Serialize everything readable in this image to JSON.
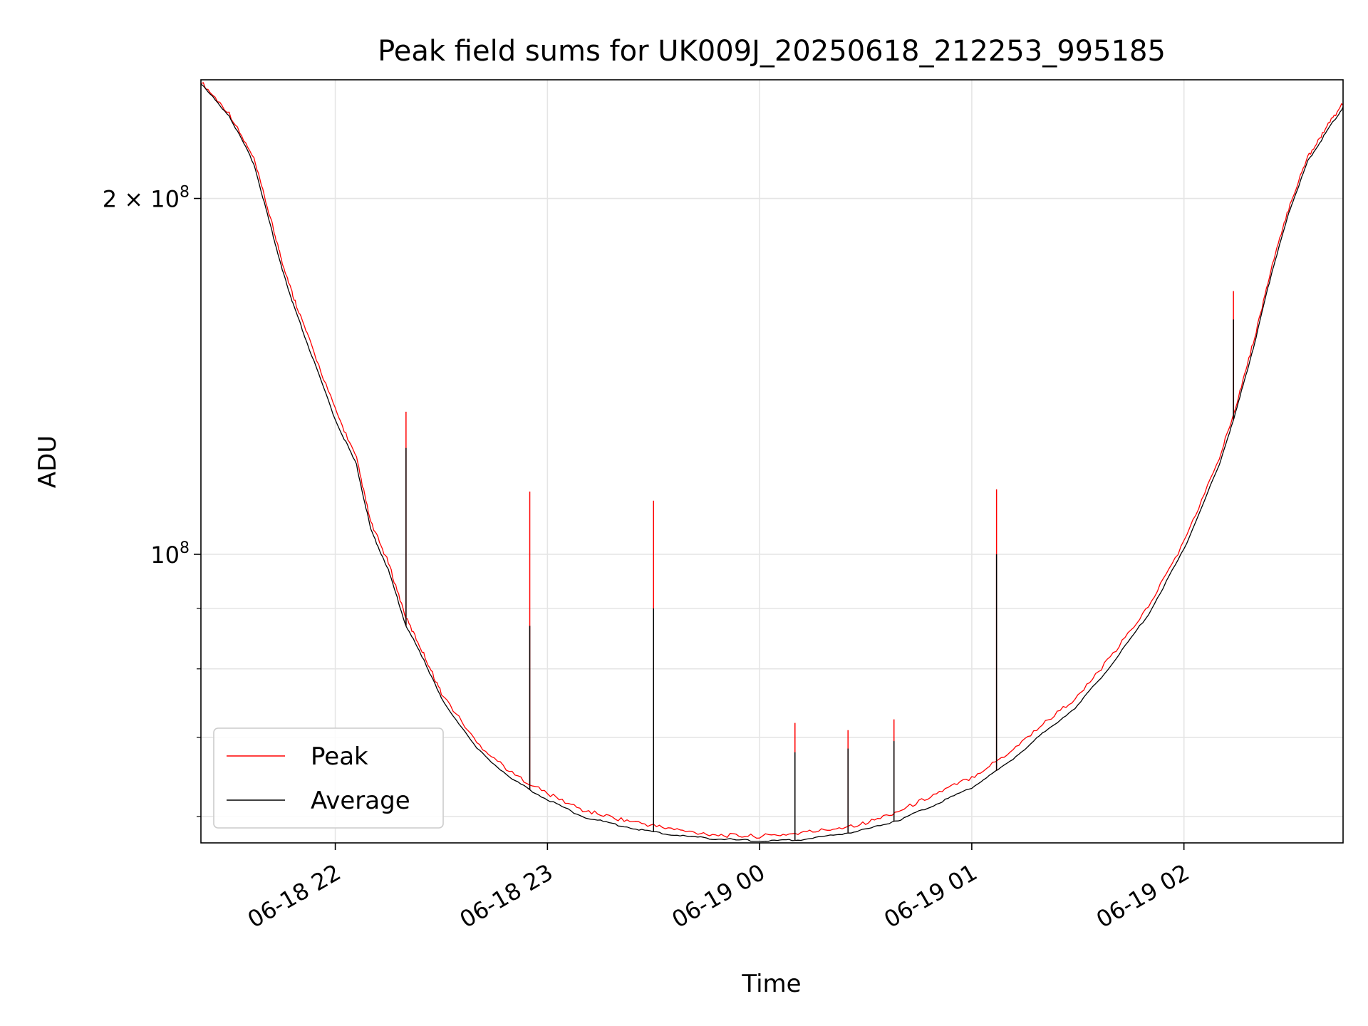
{
  "chart_data": {
    "type": "line",
    "title": "Peak field sums for UK009J_20250618_212253_995185",
    "xlabel": "Time",
    "ylabel": "ADU",
    "yscale": "log",
    "grid": true,
    "legend_position": "lower-left",
    "xlim": [
      "2025-06-18 21:22",
      "2025-06-19 02:45"
    ],
    "ylim": [
      57000000,
      252000000
    ],
    "x_ticks": [
      {
        "value": "2025-06-18 22:00",
        "label": "06-18 22"
      },
      {
        "value": "2025-06-18 23:00",
        "label": "06-18 23"
      },
      {
        "value": "2025-06-19 00:00",
        "label": "06-19 00"
      },
      {
        "value": "2025-06-19 01:00",
        "label": "06-19 01"
      },
      {
        "value": "2025-06-19 02:00",
        "label": "06-19 02"
      }
    ],
    "y_major_ticks": [
      {
        "value": 100000000,
        "base": "10",
        "exp": "8",
        "coef": ""
      },
      {
        "value": 200000000,
        "base": "10",
        "exp": "8",
        "coef": "2 × "
      }
    ],
    "y_minor_ticks": [
      60000000,
      70000000,
      80000000,
      90000000
    ],
    "series": [
      {
        "name": "Peak",
        "color": "#ff0000",
        "x": [
          "2025-06-18 21:22",
          "2025-06-18 21:30",
          "2025-06-18 21:37",
          "2025-06-18 21:42",
          "2025-06-18 21:45",
          "2025-06-18 21:48",
          "2025-06-18 21:52",
          "2025-06-18 22:00",
          "2025-06-18 22:06",
          "2025-06-18 22:10",
          "2025-06-18 22:15",
          "2025-06-18 22:20",
          "2025-06-18 22:25",
          "2025-06-18 22:30",
          "2025-06-18 22:40",
          "2025-06-18 22:50",
          "2025-06-18 23:00",
          "2025-06-18 23:10",
          "2025-06-18 23:20",
          "2025-06-18 23:30",
          "2025-06-18 23:40",
          "2025-06-18 23:50",
          "2025-06-19 00:00",
          "2025-06-19 00:10",
          "2025-06-19 00:20",
          "2025-06-19 00:30",
          "2025-06-19 00:40",
          "2025-06-19 00:50",
          "2025-06-19 01:00",
          "2025-06-19 01:10",
          "2025-06-19 01:20",
          "2025-06-19 01:30",
          "2025-06-19 01:40",
          "2025-06-19 01:50",
          "2025-06-19 02:00",
          "2025-06-19 02:10",
          "2025-06-19 02:15",
          "2025-06-19 02:20",
          "2025-06-19 02:25",
          "2025-06-19 02:30",
          "2025-06-19 02:35",
          "2025-06-19 02:40",
          "2025-06-19 02:45"
        ],
        "y": [
          250000000,
          235000000,
          215000000,
          190000000,
          176000000,
          165000000,
          153000000,
          132000000,
          120000000,
          106000000,
          98000000,
          88000000,
          82000000,
          76000000,
          69000000,
          65000000,
          62500000,
          60500000,
          59500000,
          58700000,
          58000000,
          57600000,
          57500000,
          57800000,
          58300000,
          59000000,
          60500000,
          62500000,
          64500000,
          67500000,
          71500000,
          75500000,
          82000000,
          90000000,
          102000000,
          120000000,
          134000000,
          152000000,
          175000000,
          197000000,
          216000000,
          228000000,
          240000000
        ]
      },
      {
        "name": "Average",
        "color": "#000000",
        "x": [
          "2025-06-18 21:22",
          "2025-06-18 21:30",
          "2025-06-18 21:37",
          "2025-06-18 21:42",
          "2025-06-18 21:45",
          "2025-06-18 21:48",
          "2025-06-18 21:52",
          "2025-06-18 22:00",
          "2025-06-18 22:06",
          "2025-06-18 22:10",
          "2025-06-18 22:15",
          "2025-06-18 22:20",
          "2025-06-18 22:25",
          "2025-06-18 22:30",
          "2025-06-18 22:40",
          "2025-06-18 22:50",
          "2025-06-18 23:00",
          "2025-06-18 23:10",
          "2025-06-18 23:20",
          "2025-06-18 23:30",
          "2025-06-18 23:40",
          "2025-06-18 23:50",
          "2025-06-19 00:00",
          "2025-06-19 00:10",
          "2025-06-19 00:20",
          "2025-06-19 00:30",
          "2025-06-19 00:40",
          "2025-06-19 00:50",
          "2025-06-19 01:00",
          "2025-06-19 01:10",
          "2025-06-19 01:20",
          "2025-06-19 01:30",
          "2025-06-19 01:40",
          "2025-06-19 01:50",
          "2025-06-19 02:00",
          "2025-06-19 02:10",
          "2025-06-19 02:15",
          "2025-06-19 02:20",
          "2025-06-19 02:25",
          "2025-06-19 02:30",
          "2025-06-19 02:35",
          "2025-06-19 02:40",
          "2025-06-19 02:45"
        ],
        "y": [
          250000000,
          235000000,
          214000000,
          188000000,
          174000000,
          163000000,
          151000000,
          130000000,
          119000000,
          105000000,
          97000000,
          87000000,
          81500000,
          75500000,
          68500000,
          64500000,
          62000000,
          60000000,
          59000000,
          58200000,
          57700000,
          57400000,
          57200000,
          57300000,
          57800000,
          58500000,
          59700000,
          61500000,
          63500000,
          66500000,
          70500000,
          74500000,
          81000000,
          89000000,
          101000000,
          119000000,
          133000000,
          151000000,
          174000000,
          196000000,
          215000000,
          227000000,
          239000000
        ]
      }
    ],
    "spikes": [
      {
        "x": "2025-06-18 22:20",
        "peak": 132000000,
        "average": 123000000
      },
      {
        "x": "2025-06-18 22:55",
        "peak": 113000000,
        "average": 87000000
      },
      {
        "x": "2025-06-18 23:30",
        "peak": 111000000,
        "average": 90000000
      },
      {
        "x": "2025-06-19 00:10",
        "peak": 72000000,
        "average": 68000000
      },
      {
        "x": "2025-06-19 00:25",
        "peak": 71000000,
        "average": 68500000
      },
      {
        "x": "2025-06-19 00:38",
        "peak": 72500000,
        "average": 69500000
      },
      {
        "x": "2025-06-19 01:07",
        "peak": 113500000,
        "average": 100000000
      },
      {
        "x": "2025-06-19 02:14",
        "peak": 167000000,
        "average": 158000000
      }
    ]
  }
}
